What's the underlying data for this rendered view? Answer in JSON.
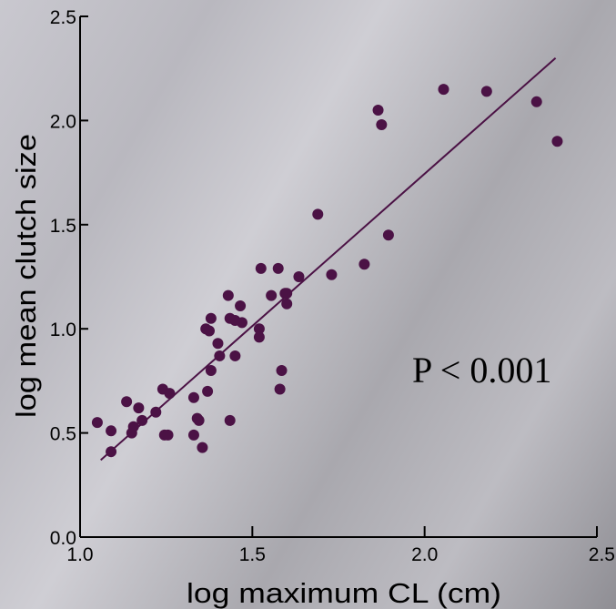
{
  "chart_data": {
    "type": "scatter",
    "xlabel": "log maximum CL (cm)",
    "ylabel": "log mean clutch size",
    "xlim": [
      1.0,
      2.5
    ],
    "ylim": [
      0.0,
      2.5
    ],
    "x_ticks": [
      "1.0",
      "1.5",
      "2.0",
      "2.5"
    ],
    "y_ticks": [
      "0.0",
      "0.5",
      "1.0",
      "1.5",
      "2.0",
      "2.5"
    ],
    "annotation": "P < 0.001",
    "grid": false,
    "points": [
      {
        "x": 1.05,
        "y": 0.55
      },
      {
        "x": 1.09,
        "y": 0.51
      },
      {
        "x": 1.09,
        "y": 0.41
      },
      {
        "x": 1.135,
        "y": 0.65
      },
      {
        "x": 1.15,
        "y": 0.5
      },
      {
        "x": 1.155,
        "y": 0.53
      },
      {
        "x": 1.17,
        "y": 0.62
      },
      {
        "x": 1.18,
        "y": 0.56
      },
      {
        "x": 1.22,
        "y": 0.6
      },
      {
        "x": 1.24,
        "y": 0.71
      },
      {
        "x": 1.245,
        "y": 0.49
      },
      {
        "x": 1.255,
        "y": 0.49
      },
      {
        "x": 1.26,
        "y": 0.69
      },
      {
        "x": 1.33,
        "y": 0.67
      },
      {
        "x": 1.33,
        "y": 0.49
      },
      {
        "x": 1.34,
        "y": 0.57
      },
      {
        "x": 1.345,
        "y": 0.56
      },
      {
        "x": 1.355,
        "y": 0.43
      },
      {
        "x": 1.365,
        "y": 1.0
      },
      {
        "x": 1.37,
        "y": 0.7
      },
      {
        "x": 1.375,
        "y": 0.99
      },
      {
        "x": 1.38,
        "y": 1.05
      },
      {
        "x": 1.38,
        "y": 0.8
      },
      {
        "x": 1.4,
        "y": 0.93
      },
      {
        "x": 1.405,
        "y": 0.87
      },
      {
        "x": 1.43,
        "y": 1.16
      },
      {
        "x": 1.435,
        "y": 1.05
      },
      {
        "x": 1.435,
        "y": 0.56
      },
      {
        "x": 1.45,
        "y": 1.04
      },
      {
        "x": 1.45,
        "y": 0.87
      },
      {
        "x": 1.465,
        "y": 1.11
      },
      {
        "x": 1.47,
        "y": 1.03
      },
      {
        "x": 1.52,
        "y": 1.0
      },
      {
        "x": 1.52,
        "y": 0.96
      },
      {
        "x": 1.525,
        "y": 1.29
      },
      {
        "x": 1.555,
        "y": 1.16
      },
      {
        "x": 1.575,
        "y": 1.29
      },
      {
        "x": 1.58,
        "y": 0.71
      },
      {
        "x": 1.585,
        "y": 0.8
      },
      {
        "x": 1.595,
        "y": 1.17
      },
      {
        "x": 1.6,
        "y": 1.12
      },
      {
        "x": 1.6,
        "y": 1.17
      },
      {
        "x": 1.635,
        "y": 1.25
      },
      {
        "x": 1.69,
        "y": 1.55
      },
      {
        "x": 1.73,
        "y": 1.26
      },
      {
        "x": 1.825,
        "y": 1.31
      },
      {
        "x": 1.865,
        "y": 2.05
      },
      {
        "x": 1.875,
        "y": 1.98
      },
      {
        "x": 1.895,
        "y": 1.45
      },
      {
        "x": 2.055,
        "y": 2.15
      },
      {
        "x": 2.18,
        "y": 2.14
      },
      {
        "x": 2.325,
        "y": 2.09
      },
      {
        "x": 2.385,
        "y": 1.9
      }
    ],
    "trendline": {
      "x": [
        1.06,
        2.38
      ],
      "y": [
        0.37,
        2.3
      ]
    }
  }
}
